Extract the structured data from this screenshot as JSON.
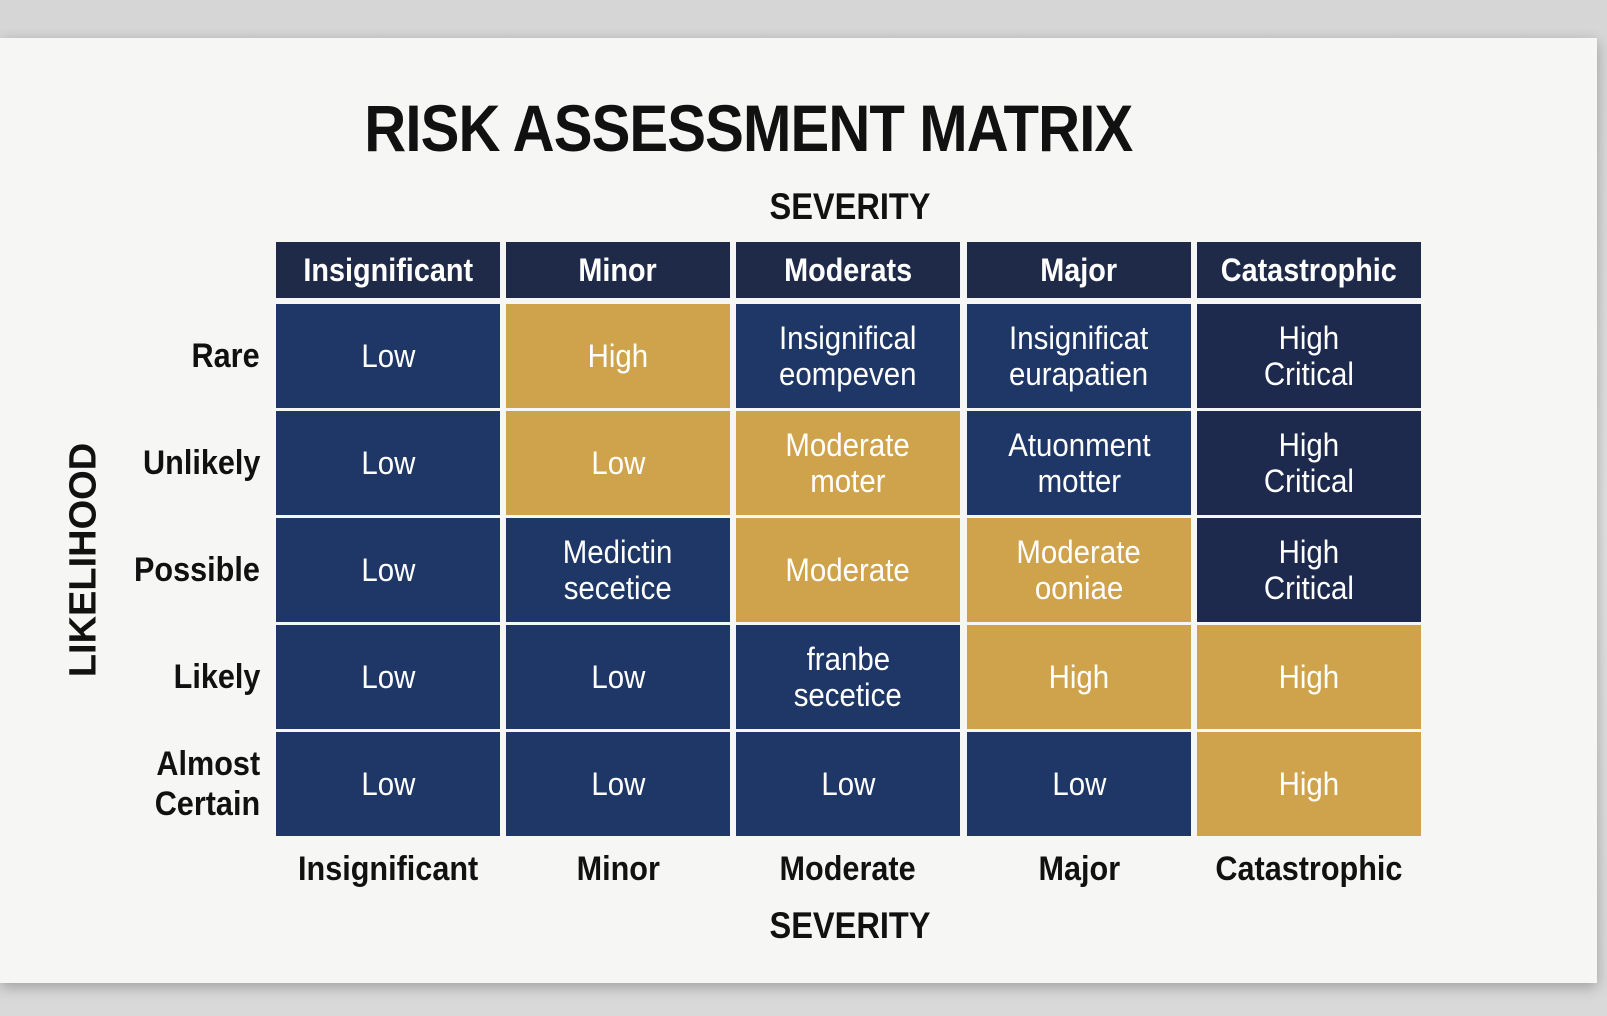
{
  "title": "RISK ASSESSMENT MATRIX",
  "severity_label": "SEVERITY",
  "likelihood_label": "LIKELIHOOD",
  "colors": {
    "gold": "#cfa34c",
    "blue": "#1f3766",
    "navy": "#1d2a4d",
    "header": "#1e2a48"
  },
  "columns_top": [
    "Insignificant",
    "Minor",
    "Moderats",
    "Major",
    "Catastrophic"
  ],
  "columns_bottom": [
    "Insignificant",
    "Minor",
    "Moderate",
    "Major",
    "Catastrophic"
  ],
  "rows": [
    {
      "label": [
        "Rare"
      ],
      "cells": [
        {
          "lines": [
            "Low"
          ],
          "color": "blue"
        },
        {
          "lines": [
            "High"
          ],
          "color": "gold"
        },
        {
          "lines": [
            "Insignifical",
            "eompeven"
          ],
          "color": "blue"
        },
        {
          "lines": [
            "Insignificat",
            "eurapatien"
          ],
          "color": "blue"
        },
        {
          "lines": [
            "High",
            "Critical"
          ],
          "color": "navy"
        }
      ]
    },
    {
      "label": [
        "Unlikely"
      ],
      "cells": [
        {
          "lines": [
            "Low"
          ],
          "color": "blue"
        },
        {
          "lines": [
            "Low"
          ],
          "color": "gold"
        },
        {
          "lines": [
            "Moderate",
            "moter"
          ],
          "color": "gold"
        },
        {
          "lines": [
            "Atuonment",
            "motter"
          ],
          "color": "blue"
        },
        {
          "lines": [
            "High",
            "Critical"
          ],
          "color": "navy"
        }
      ]
    },
    {
      "label": [
        "Possible"
      ],
      "cells": [
        {
          "lines": [
            "Low"
          ],
          "color": "blue"
        },
        {
          "lines": [
            "Medictin",
            "secetice"
          ],
          "color": "blue"
        },
        {
          "lines": [
            "Moderate"
          ],
          "color": "gold"
        },
        {
          "lines": [
            "Moderate",
            "ooniae"
          ],
          "color": "gold"
        },
        {
          "lines": [
            "High",
            "Critical"
          ],
          "color": "navy"
        }
      ]
    },
    {
      "label": [
        "Likely"
      ],
      "cells": [
        {
          "lines": [
            "Low"
          ],
          "color": "blue"
        },
        {
          "lines": [
            "Low"
          ],
          "color": "blue"
        },
        {
          "lines": [
            "franbe",
            "secetice"
          ],
          "color": "blue"
        },
        {
          "lines": [
            "High"
          ],
          "color": "gold"
        },
        {
          "lines": [
            "High"
          ],
          "color": "gold"
        }
      ]
    },
    {
      "label": [
        "Almost",
        "Certain"
      ],
      "cells": [
        {
          "lines": [
            "Low"
          ],
          "color": "blue"
        },
        {
          "lines": [
            "Low"
          ],
          "color": "blue"
        },
        {
          "lines": [
            "Low"
          ],
          "color": "blue"
        },
        {
          "lines": [
            "Low"
          ],
          "color": "blue"
        },
        {
          "lines": [
            "High"
          ],
          "color": "gold"
        }
      ]
    }
  ]
}
